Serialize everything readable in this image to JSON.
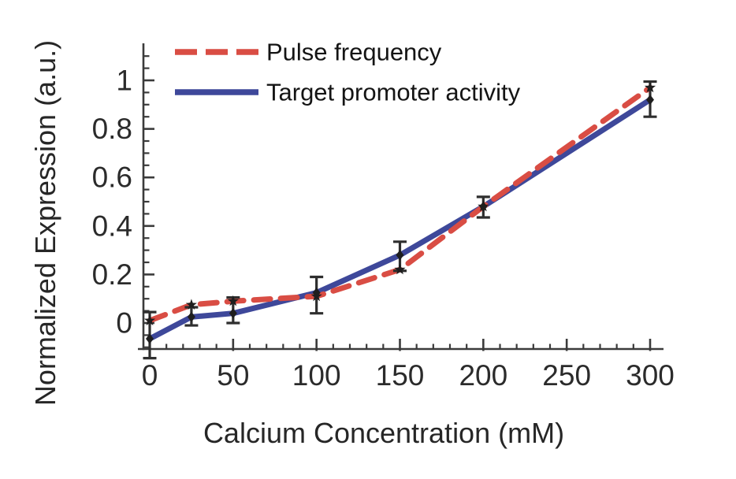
{
  "chart_data": {
    "type": "line",
    "title": "",
    "xlabel": "Calcium Concentration (mM)",
    "ylabel": "Normalized Expression  (a.u.)",
    "x": [
      0,
      25,
      50,
      100,
      150,
      200,
      300
    ],
    "series": [
      {
        "name": "Pulse frequency",
        "color": "#D94D44",
        "style": "dashed",
        "marker": "star",
        "values": [
          0.01,
          0.075,
          0.09,
          0.11,
          0.22,
          0.48,
          0.97
        ]
      },
      {
        "name": "Target promoter activity",
        "color": "#3E489A",
        "style": "solid",
        "marker": "diamond",
        "values": [
          -0.065,
          0.025,
          0.04,
          0.125,
          0.28,
          0.48,
          0.92
        ]
      }
    ],
    "error_bars": [
      {
        "x": 0,
        "low": -0.145,
        "high": 0.045
      },
      {
        "x": 25,
        "low": -0.01,
        "high": 0.065
      },
      {
        "x": 50,
        "low": 0.0,
        "high": 0.105
      },
      {
        "x": 100,
        "low": 0.04,
        "high": 0.19
      },
      {
        "x": 150,
        "low": 0.215,
        "high": 0.335
      },
      {
        "x": 200,
        "low": 0.435,
        "high": 0.52
      },
      {
        "x": 300,
        "low": 0.85,
        "high": 0.995
      }
    ],
    "x_ticks": [
      0,
      50,
      100,
      150,
      200,
      250,
      300
    ],
    "y_ticks": [
      0,
      0.2,
      0.4,
      0.6,
      0.8,
      1
    ],
    "x_minor_step": 10,
    "y_minor_step": 0.05,
    "xlim": [
      -6,
      308
    ],
    "ylim": [
      -0.11,
      1.15
    ],
    "grid": false,
    "legend_position": "top-left",
    "axis_color": "#3b3b3b",
    "text_color": "#262626",
    "error_bar_color": "#2e2e2e",
    "marker_color": "#1e1e1e"
  }
}
